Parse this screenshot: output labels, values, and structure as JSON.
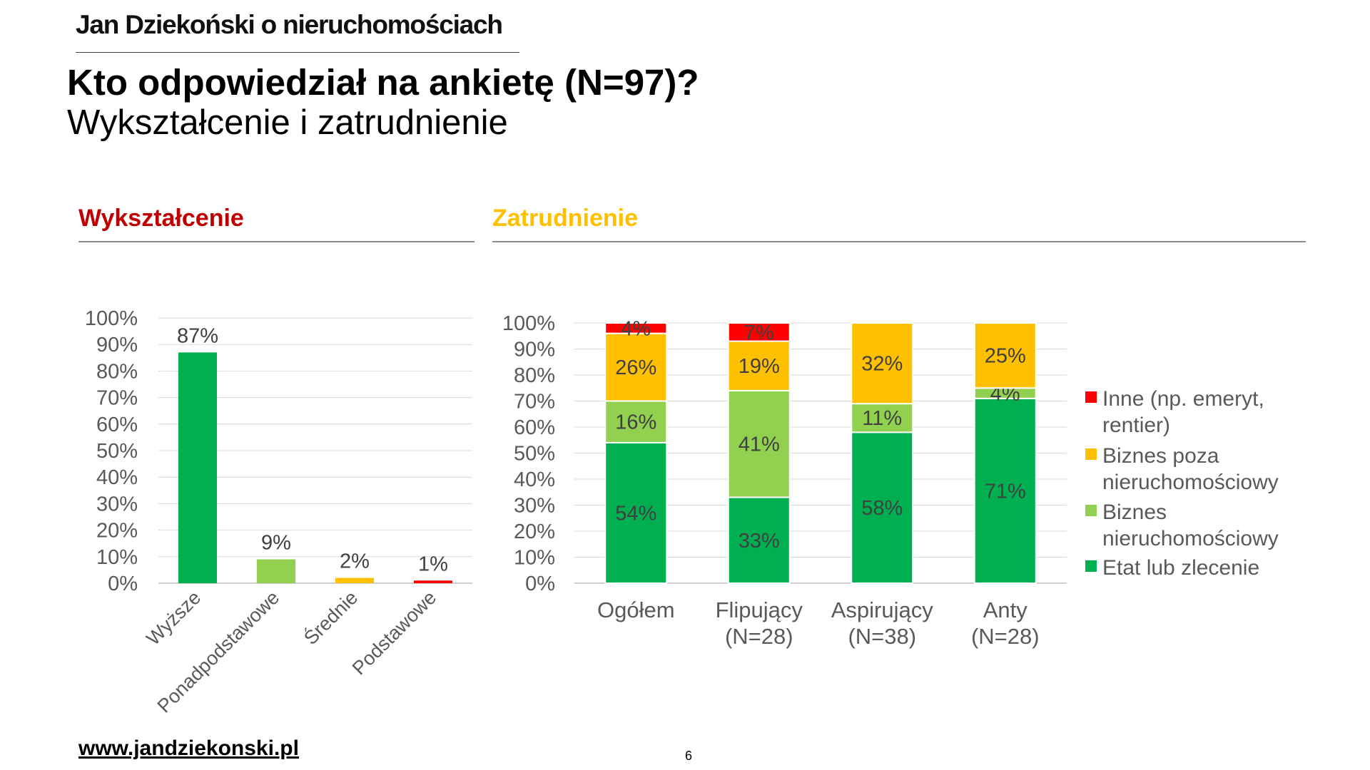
{
  "header": {
    "brand": "Jan Dziekoński o nieruchomościach",
    "title": "Kto odpowiedział na ankietę (N=97)?",
    "subtitle": "Wykształcenie i zatrudnienie"
  },
  "sections": {
    "education": {
      "label": "Wykształcenie",
      "color": "#c00000"
    },
    "employment": {
      "label": "Zatrudnienie",
      "color": "#ffc000"
    }
  },
  "footer": {
    "website": "www.jandziekonski.pl",
    "page_number": "6"
  },
  "chart_data": [
    {
      "type": "bar",
      "title": "Wykształcenie",
      "categories": [
        "Wyższe",
        "Ponadpodstawowe",
        "Średnie",
        "Podstawowe"
      ],
      "values": [
        87,
        9,
        2,
        1
      ],
      "data_labels": [
        "87%",
        "9%",
        "2%",
        "1%"
      ],
      "colors": [
        "#00b050",
        "#92d050",
        "#ffc000",
        "#ff0000"
      ],
      "ylim": [
        0,
        100
      ],
      "yticks": [
        "0%",
        "10%",
        "20%",
        "30%",
        "40%",
        "50%",
        "60%",
        "70%",
        "80%",
        "90%",
        "100%"
      ],
      "grid": true,
      "legend": "none"
    },
    {
      "type": "bar",
      "stacked": true,
      "title": "Zatrudnienie",
      "categories": [
        "Ogółem",
        "Flipujący (N=28)",
        "Aspirujący (N=38)",
        "Anty (N=28)"
      ],
      "ylim": [
        0,
        100
      ],
      "yticks": [
        "0%",
        "10%",
        "20%",
        "30%",
        "40%",
        "50%",
        "60%",
        "70%",
        "80%",
        "90%",
        "100%"
      ],
      "grid": true,
      "legend": "right",
      "series": [
        {
          "name": "Etat lub zlecenie",
          "color": "#00b050",
          "values": [
            54,
            33,
            58,
            71
          ],
          "labels": [
            "54%",
            "33%",
            "58%",
            "71%"
          ]
        },
        {
          "name": "Biznes nieruchomościowy",
          "color": "#92d050",
          "values": [
            16,
            41,
            11,
            4
          ],
          "labels": [
            "16%",
            "41%",
            "11%",
            "4%"
          ]
        },
        {
          "name": "Biznes poza nieruchomościowy",
          "color": "#ffc000",
          "values": [
            26,
            19,
            32,
            25
          ],
          "labels": [
            "26%",
            "19%",
            "32%",
            "25%"
          ]
        },
        {
          "name": "Inne (np. emeryt, rentier)",
          "color": "#ff0000",
          "values": [
            4,
            7,
            0,
            0
          ],
          "labels": [
            "4%",
            "7%",
            "",
            ""
          ]
        }
      ]
    }
  ]
}
